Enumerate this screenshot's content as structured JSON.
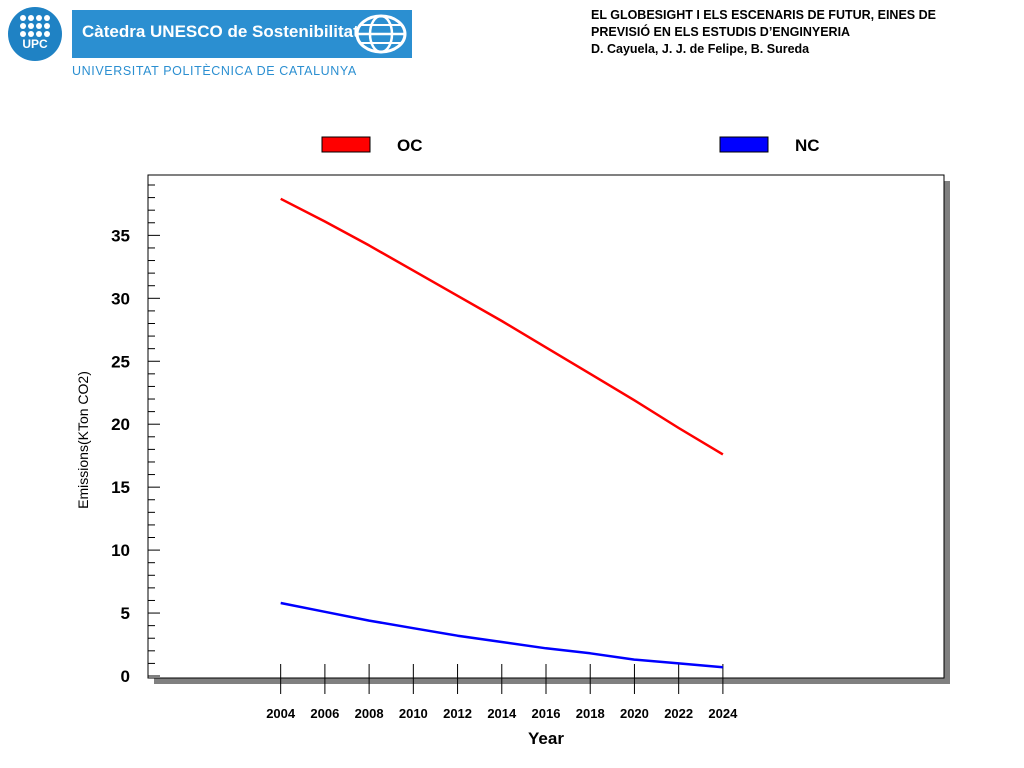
{
  "header": {
    "logo_text": "UPC",
    "catedra": "Càtedra UNESCO de Sostenibilitat",
    "university": "UNIVERSITAT POLITÈCNICA DE CATALUNYA"
  },
  "slide": {
    "title_line1": "EL GLOBESIGHT I ELS ESCENARIS DE FUTUR, EINES DE",
    "title_line2": "PREVISIÓ EN ELS ESTUDIS D’ENGINYERIA",
    "authors": "D. Cayuela, J. J. de Felipe, B. Sureda"
  },
  "colors": {
    "brand_blue": "#2b8fd1",
    "oc": "#ff0000",
    "nc": "#0000ff"
  },
  "chart_data": {
    "type": "line",
    "title": "",
    "xlabel": "Year",
    "ylabel": "Emissions(KTon CO2)",
    "xlim": [
      1998,
      2034
    ],
    "ylim": [
      0,
      39
    ],
    "x_ticks": [
      2004,
      2006,
      2008,
      2010,
      2012,
      2014,
      2016,
      2018,
      2020,
      2022,
      2024
    ],
    "y_ticks": [
      0,
      5,
      10,
      15,
      20,
      25,
      30,
      35
    ],
    "legend_position": "top",
    "grid": false,
    "x": [
      2004,
      2006,
      2008,
      2010,
      2012,
      2014,
      2016,
      2018,
      2020,
      2022,
      2024
    ],
    "series": [
      {
        "name": "OC",
        "color": "#ff0000",
        "values": [
          37.9,
          36.1,
          34.2,
          32.2,
          30.2,
          28.2,
          26.1,
          24.0,
          21.9,
          19.7,
          17.6
        ]
      },
      {
        "name": "NC",
        "color": "#0000ff",
        "values": [
          5.8,
          5.1,
          4.4,
          3.8,
          3.2,
          2.7,
          2.2,
          1.8,
          1.3,
          1.0,
          0.7
        ]
      }
    ]
  }
}
